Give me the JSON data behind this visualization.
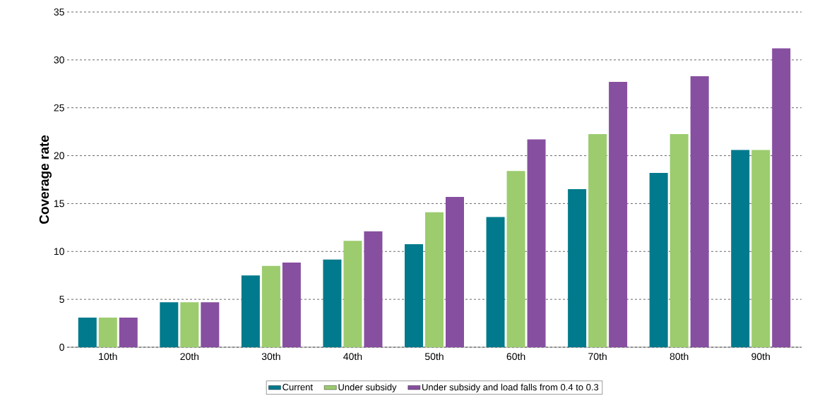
{
  "chart_data": {
    "type": "bar",
    "ylabel": "Coverage rate",
    "categories": [
      "10th",
      "20th",
      "30th",
      "40th",
      "50th",
      "60th",
      "70th",
      "80th",
      "90th"
    ],
    "series": [
      {
        "name": "Current",
        "color": "#007a8c",
        "values": [
          3.1,
          4.7,
          7.5,
          9.15,
          10.75,
          13.6,
          16.5,
          18.2,
          20.6
        ]
      },
      {
        "name": "Under subsidy",
        "color": "#9ccc6e",
        "values": [
          3.1,
          4.7,
          8.5,
          11.1,
          14.1,
          18.4,
          22.25,
          22.25,
          20.6
        ]
      },
      {
        "name": "Under subsidy and load falls from 0.4 to 0.3",
        "color": "#874fa0",
        "values": [
          3.1,
          4.7,
          8.85,
          12.1,
          15.7,
          21.7,
          27.7,
          28.3,
          31.2
        ]
      }
    ],
    "ylim": [
      0,
      35
    ],
    "yticks": [
      0,
      5,
      10,
      15,
      20,
      25,
      30,
      35
    ],
    "grid": "y",
    "legend": "bottom"
  }
}
